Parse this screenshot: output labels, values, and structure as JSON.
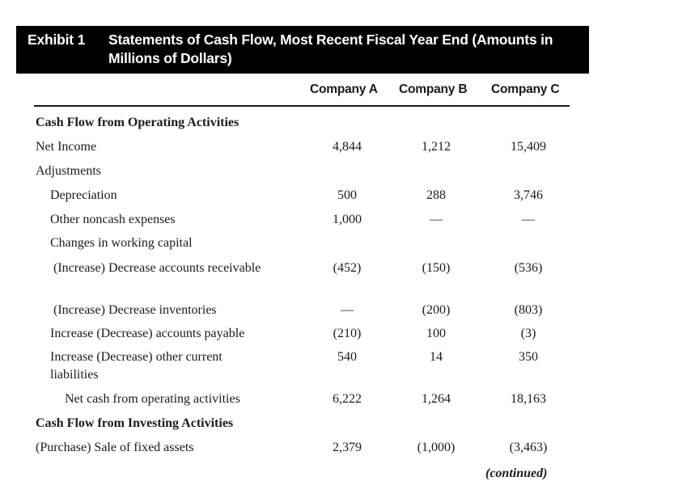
{
  "exhibit": {
    "label": "Exhibit 1",
    "title": "Statements of Cash Flow, Most Recent Fiscal Year End (Amounts in Millions of Dollars)"
  },
  "columns": [
    "Company A",
    "Company B",
    "Company C"
  ],
  "rows": [
    {
      "label": "Cash Flow from Operating Activities",
      "values": [
        "",
        "",
        ""
      ]
    },
    {
      "label": "Net Income",
      "values": [
        "4,844",
        "1,212",
        "15,409"
      ]
    },
    {
      "label": "Adjustments",
      "values": [
        "",
        "",
        ""
      ]
    },
    {
      "label": "Depreciation",
      "values": [
        "500",
        "288",
        "3,746"
      ]
    },
    {
      "label": "Other noncash expenses",
      "values": [
        "1,000",
        "—",
        "—"
      ]
    },
    {
      "label": "Changes in working capital",
      "values": [
        "",
        "",
        ""
      ]
    },
    {
      "label": "(Increase) Decrease accounts receivable",
      "values": [
        "(452)",
        "(150)",
        "(536)"
      ]
    },
    {
      "label": "(Increase) Decrease inventories",
      "values": [
        "—",
        "(200)",
        "(803)"
      ]
    },
    {
      "label": "Increase (Decrease) accounts payable",
      "values": [
        "(210)",
        "100",
        "(3)"
      ]
    },
    {
      "label": "Increase (Decrease) other current liabilities",
      "values": [
        "540",
        "14",
        "350"
      ]
    },
    {
      "label": "Net cash from operating activities",
      "values": [
        "6,222",
        "1,264",
        "18,163"
      ]
    },
    {
      "label": "Cash Flow from Investing Activities",
      "values": [
        "",
        "",
        ""
      ]
    },
    {
      "label": "(Purchase) Sale of fixed assets",
      "values": [
        "2,379",
        "(1,000)",
        "(3,463)"
      ]
    }
  ],
  "footer": {
    "continued": "(continued)"
  }
}
